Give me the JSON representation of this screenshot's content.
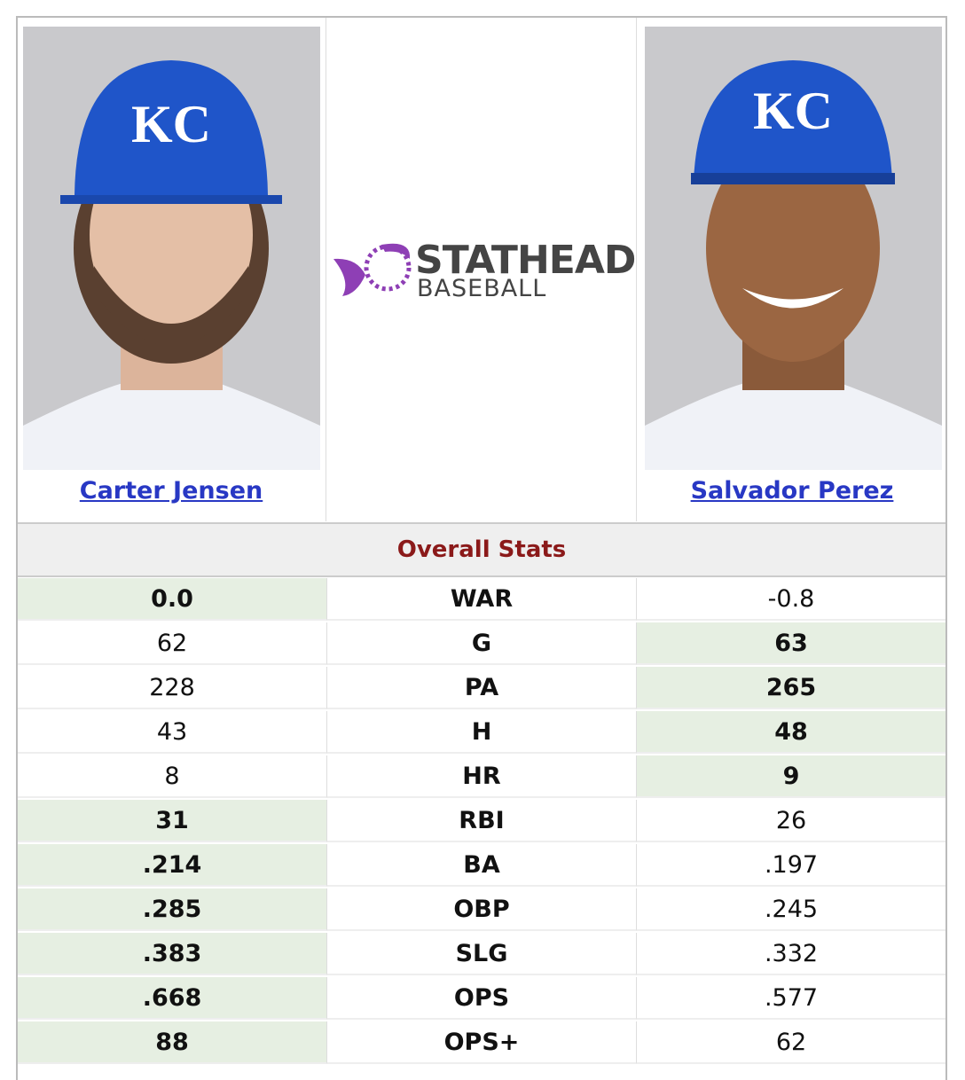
{
  "logo": {
    "line1": "STATHEAD",
    "line2": "BASEBALL"
  },
  "players": [
    {
      "name": "Carter Jensen"
    },
    {
      "name": "Salvador Perez"
    }
  ],
  "section_title": "Overall Stats",
  "rows": [
    {
      "stat": "WAR",
      "values": [
        "0.0",
        "-0.8"
      ],
      "highlight": "left"
    },
    {
      "stat": "G",
      "values": [
        "62",
        "63"
      ],
      "highlight": "right"
    },
    {
      "stat": "PA",
      "values": [
        "228",
        "265"
      ],
      "highlight": "right"
    },
    {
      "stat": "H",
      "values": [
        "43",
        "48"
      ],
      "highlight": "right"
    },
    {
      "stat": "HR",
      "values": [
        "8",
        "9"
      ],
      "highlight": "right"
    },
    {
      "stat": "RBI",
      "values": [
        "31",
        "26"
      ],
      "highlight": "left"
    },
    {
      "stat": "BA",
      "values": [
        ".214",
        ".197"
      ],
      "highlight": "left"
    },
    {
      "stat": "OBP",
      "values": [
        ".285",
        ".245"
      ],
      "highlight": "left"
    },
    {
      "stat": "SLG",
      "values": [
        ".383",
        ".332"
      ],
      "highlight": "left"
    },
    {
      "stat": "OPS",
      "values": [
        ".668",
        ".577"
      ],
      "highlight": "left"
    },
    {
      "stat": "OPS+",
      "values": [
        "88",
        "62"
      ],
      "highlight": "left"
    }
  ]
}
